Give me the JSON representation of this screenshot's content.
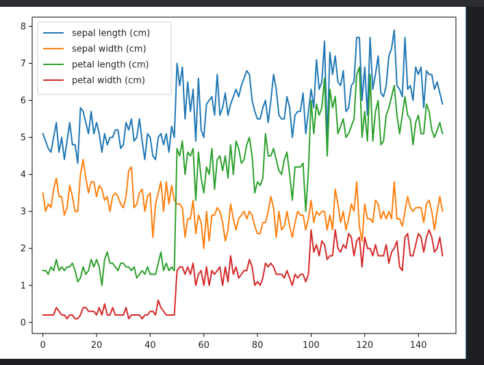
{
  "chart_data": {
    "type": "line",
    "title": "",
    "xlabel": "",
    "ylabel": "",
    "xlim": [
      -4,
      154
    ],
    "ylim": [
      -0.3,
      8.25
    ],
    "xticks": [
      0,
      20,
      40,
      60,
      80,
      100,
      120,
      140
    ],
    "yticks": [
      0,
      1,
      2,
      3,
      4,
      5,
      6,
      7,
      8
    ],
    "x_start": 0,
    "legend_position": "upper-left",
    "series": [
      {
        "name": "sepal length (cm)",
        "color": "#1f77b4",
        "values": [
          5.1,
          4.9,
          4.7,
          4.6,
          5.0,
          5.4,
          4.6,
          5.0,
          4.4,
          4.9,
          5.4,
          4.8,
          4.8,
          4.3,
          5.8,
          5.7,
          5.4,
          5.1,
          5.7,
          5.1,
          5.4,
          5.1,
          4.6,
          5.1,
          4.8,
          5.0,
          5.0,
          5.2,
          5.2,
          4.7,
          4.8,
          5.4,
          5.2,
          5.5,
          4.9,
          5.0,
          5.5,
          4.9,
          4.4,
          5.1,
          5.0,
          4.5,
          4.4,
          5.0,
          5.1,
          4.8,
          5.1,
          4.6,
          5.3,
          5.0,
          7.0,
          6.4,
          6.9,
          5.5,
          6.5,
          5.7,
          6.3,
          4.9,
          6.6,
          5.2,
          5.0,
          5.9,
          6.0,
          6.1,
          5.6,
          6.7,
          5.6,
          5.8,
          6.2,
          5.6,
          5.9,
          6.1,
          6.3,
          6.1,
          6.4,
          6.6,
          6.8,
          6.7,
          6.0,
          5.7,
          5.5,
          5.5,
          5.8,
          6.0,
          5.4,
          6.0,
          6.7,
          6.3,
          5.6,
          5.5,
          5.5,
          6.1,
          5.8,
          5.0,
          5.6,
          5.7,
          5.7,
          6.2,
          5.1,
          5.7,
          6.3,
          5.8,
          7.1,
          6.3,
          6.5,
          7.6,
          4.9,
          7.3,
          6.7,
          7.2,
          6.5,
          6.4,
          6.8,
          5.7,
          5.8,
          6.4,
          6.5,
          7.7,
          7.7,
          6.0,
          6.9,
          5.6,
          7.7,
          6.3,
          6.7,
          7.2,
          6.2,
          6.1,
          6.4,
          7.2,
          7.4,
          7.9,
          6.4,
          6.3,
          6.1,
          7.7,
          6.3,
          6.4,
          6.0,
          6.9,
          6.7,
          6.9,
          5.8,
          6.8,
          6.7,
          6.7,
          6.3,
          6.5,
          6.2,
          5.9
        ]
      },
      {
        "name": "sepal width (cm)",
        "color": "#ff7f0e",
        "values": [
          3.5,
          3.0,
          3.2,
          3.1,
          3.6,
          3.9,
          3.4,
          3.4,
          2.9,
          3.1,
          3.7,
          3.4,
          3.0,
          3.0,
          4.0,
          4.4,
          3.9,
          3.5,
          3.8,
          3.8,
          3.4,
          3.7,
          3.6,
          3.3,
          3.4,
          3.0,
          3.4,
          3.5,
          3.4,
          3.2,
          3.1,
          3.4,
          4.1,
          4.2,
          3.1,
          3.2,
          3.5,
          3.6,
          3.0,
          3.4,
          3.5,
          2.3,
          3.2,
          3.5,
          3.8,
          3.0,
          3.8,
          3.2,
          3.7,
          3.3,
          3.2,
          3.2,
          3.1,
          2.3,
          2.8,
          2.8,
          3.3,
          2.4,
          2.9,
          2.7,
          2.0,
          3.0,
          2.2,
          2.9,
          2.9,
          3.1,
          3.0,
          2.7,
          2.2,
          2.5,
          3.2,
          2.8,
          2.5,
          2.8,
          2.9,
          3.0,
          2.8,
          3.0,
          2.9,
          2.6,
          2.4,
          2.4,
          2.7,
          2.7,
          3.0,
          3.4,
          3.1,
          2.3,
          3.0,
          2.5,
          2.6,
          3.0,
          2.6,
          2.3,
          2.7,
          3.0,
          2.9,
          2.9,
          2.5,
          2.8,
          3.3,
          2.7,
          3.0,
          2.9,
          3.0,
          3.0,
          2.5,
          2.9,
          2.5,
          3.6,
          3.2,
          2.7,
          3.0,
          2.5,
          2.8,
          3.2,
          3.0,
          3.8,
          2.6,
          2.2,
          3.2,
          2.8,
          2.8,
          2.7,
          3.3,
          3.2,
          2.8,
          3.0,
          2.8,
          3.0,
          2.8,
          3.8,
          2.8,
          2.8,
          2.6,
          3.0,
          3.4,
          3.1,
          3.0,
          3.1,
          3.1,
          3.1,
          2.7,
          3.2,
          3.3,
          3.0,
          2.5,
          3.0,
          3.4,
          3.0
        ]
      },
      {
        "name": "petal length (cm)",
        "color": "#2ca02c",
        "values": [
          1.4,
          1.4,
          1.3,
          1.5,
          1.4,
          1.7,
          1.4,
          1.5,
          1.4,
          1.5,
          1.5,
          1.6,
          1.4,
          1.1,
          1.2,
          1.5,
          1.3,
          1.4,
          1.7,
          1.5,
          1.7,
          1.5,
          1.0,
          1.7,
          1.9,
          1.6,
          1.6,
          1.5,
          1.4,
          1.6,
          1.6,
          1.5,
          1.5,
          1.4,
          1.5,
          1.2,
          1.3,
          1.4,
          1.3,
          1.5,
          1.3,
          1.3,
          1.3,
          1.6,
          1.9,
          1.4,
          1.6,
          1.4,
          1.5,
          1.4,
          4.7,
          4.5,
          4.9,
          4.0,
          4.6,
          4.5,
          4.7,
          3.3,
          4.6,
          3.9,
          3.5,
          4.2,
          4.0,
          4.7,
          3.6,
          4.4,
          4.5,
          4.1,
          4.5,
          3.9,
          4.8,
          4.0,
          4.9,
          4.7,
          4.3,
          4.4,
          4.8,
          5.0,
          4.5,
          3.5,
          3.8,
          3.7,
          3.9,
          5.1,
          4.5,
          4.5,
          4.7,
          4.4,
          4.1,
          4.0,
          4.4,
          4.6,
          4.0,
          3.3,
          4.2,
          4.2,
          4.2,
          4.3,
          3.0,
          4.1,
          6.0,
          5.1,
          5.9,
          5.6,
          5.8,
          6.6,
          4.5,
          6.3,
          5.8,
          6.1,
          5.1,
          5.3,
          5.5,
          5.0,
          5.1,
          5.3,
          5.5,
          6.7,
          6.9,
          5.0,
          5.7,
          4.9,
          6.7,
          4.9,
          5.7,
          6.0,
          4.8,
          4.9,
          5.6,
          5.8,
          6.1,
          6.4,
          5.6,
          5.1,
          5.6,
          6.1,
          5.6,
          5.5,
          4.8,
          5.4,
          5.6,
          5.1,
          5.1,
          5.9,
          5.7,
          5.2,
          5.0,
          5.2,
          5.4,
          5.1
        ]
      },
      {
        "name": "petal width (cm)",
        "color": "#d62728",
        "values": [
          0.2,
          0.2,
          0.2,
          0.2,
          0.2,
          0.4,
          0.3,
          0.2,
          0.2,
          0.1,
          0.2,
          0.2,
          0.1,
          0.1,
          0.2,
          0.4,
          0.4,
          0.3,
          0.3,
          0.3,
          0.2,
          0.4,
          0.2,
          0.5,
          0.2,
          0.2,
          0.4,
          0.2,
          0.2,
          0.2,
          0.2,
          0.4,
          0.1,
          0.2,
          0.2,
          0.2,
          0.2,
          0.1,
          0.2,
          0.2,
          0.3,
          0.3,
          0.2,
          0.6,
          0.4,
          0.3,
          0.2,
          0.2,
          0.2,
          0.2,
          1.4,
          1.5,
          1.5,
          1.3,
          1.5,
          1.3,
          1.6,
          1.0,
          1.3,
          1.4,
          1.0,
          1.5,
          1.0,
          1.4,
          1.3,
          1.4,
          1.5,
          1.0,
          1.5,
          1.1,
          1.8,
          1.3,
          1.5,
          1.2,
          1.3,
          1.4,
          1.4,
          1.7,
          1.5,
          1.0,
          1.1,
          1.0,
          1.2,
          1.6,
          1.5,
          1.6,
          1.5,
          1.3,
          1.3,
          1.3,
          1.2,
          1.4,
          1.2,
          1.0,
          1.3,
          1.2,
          1.3,
          1.3,
          1.1,
          1.3,
          2.5,
          1.9,
          2.1,
          1.8,
          2.2,
          2.1,
          1.7,
          1.8,
          1.8,
          2.5,
          2.0,
          1.9,
          2.1,
          2.0,
          2.4,
          2.3,
          1.8,
          2.2,
          2.3,
          1.5,
          2.3,
          2.0,
          2.0,
          1.8,
          2.1,
          1.8,
          1.8,
          1.8,
          2.1,
          1.6,
          1.9,
          2.0,
          2.2,
          1.5,
          1.4,
          2.3,
          2.4,
          1.8,
          1.8,
          2.1,
          2.4,
          2.3,
          1.9,
          2.3,
          2.5,
          2.3,
          1.9,
          2.0,
          2.3,
          1.8
        ]
      }
    ]
  }
}
